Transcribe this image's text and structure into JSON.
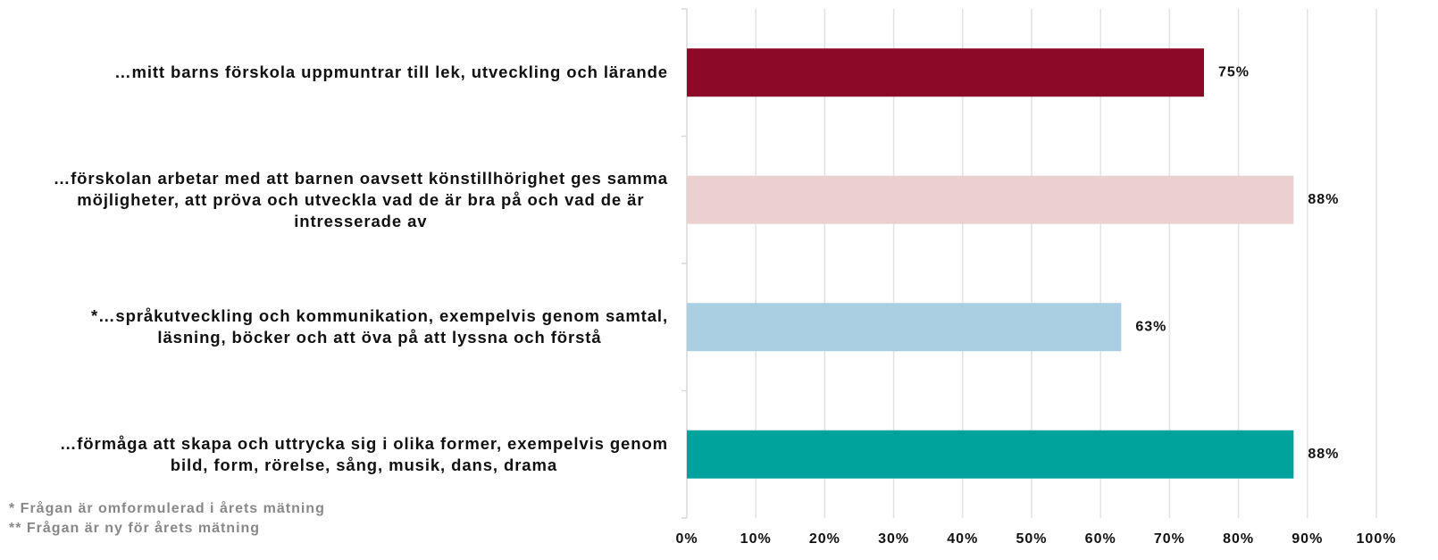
{
  "chart_data": {
    "type": "barh",
    "categories": [
      "…mitt barns förskola uppmuntrar till lek, utveckling och lärande",
      "…förskolan arbetar med att barnen oavsett könstillhörighet ges samma\nmöjligheter, att pröva och utveckla vad de är bra på och vad de är\nintresserade av",
      "*…språkutveckling och kommunikation, exempelvis genom samtal,\nläsning, böcker och att öva på att lyssna och förstå",
      "…förmåga att skapa och uttrycka sig i olika former, exempelvis genom\nbild, form, rörelse, sång, musik, dans, drama"
    ],
    "values": [
      75,
      88,
      63,
      88
    ],
    "value_labels": [
      "75%",
      "88%",
      "63%",
      "88%"
    ],
    "colors": [
      "#8c0a28",
      "#ebd0d0",
      "#abcfe2",
      "#00a39b"
    ],
    "xlim": [
      0,
      100
    ],
    "xticks": [
      {
        "value": 0,
        "label": "0%"
      },
      {
        "value": 10,
        "label": "10%"
      },
      {
        "value": 20,
        "label": "20%"
      },
      {
        "value": 30,
        "label": "30%"
      },
      {
        "value": 40,
        "label": "40%"
      },
      {
        "value": 50,
        "label": "50%"
      },
      {
        "value": 60,
        "label": "60%"
      },
      {
        "value": 70,
        "label": "70%"
      },
      {
        "value": 80,
        "label": "80%"
      },
      {
        "value": 90,
        "label": "90%"
      },
      {
        "value": 100,
        "label": "100%"
      }
    ],
    "grid": true,
    "footnotes": [
      "* Frågan är omformulerad i årets mätning",
      "** Frågan är ny för årets mätning"
    ]
  }
}
